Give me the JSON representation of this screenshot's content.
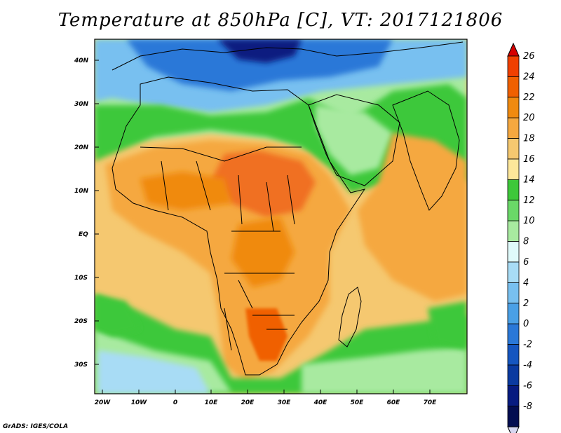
{
  "title": "Temperature at 850hPa [C], VT: 2017121806",
  "credit": "GrADS: IGES/COLA",
  "y_axis_labels": [
    "40N",
    "30N",
    "20N",
    "10N",
    "EQ",
    "10S",
    "20S",
    "30S"
  ],
  "x_axis_labels": [
    "20W",
    "10W",
    "0",
    "10E",
    "20E",
    "30E",
    "40E",
    "50E",
    "60E",
    "70E"
  ],
  "colorbar": {
    "labels": [
      "26",
      "24",
      "22",
      "20",
      "18",
      "16",
      "14",
      "12",
      "10",
      "8",
      "6",
      "4",
      "2",
      "0",
      "-2",
      "-4",
      "-6",
      "-8"
    ],
    "colors": [
      "#d50000",
      "#f04000",
      "#f06000",
      "#f08a10",
      "#f5a840",
      "#f5c870",
      "#fde79a",
      "#3ec83a",
      "#6ad868",
      "#a8eaa0",
      "#dffafa",
      "#a8dcf5",
      "#78c0f0",
      "#4aa0e6",
      "#2a78d8",
      "#1556c0",
      "#0a3aa0",
      "#071b80",
      "#030d50"
    ],
    "lowest_color": "#d6d6f0"
  },
  "map": {
    "ocean_color": "#f5c870",
    "land_dominant_color": "#f5a840",
    "hot_core_color": "#f07020"
  }
}
